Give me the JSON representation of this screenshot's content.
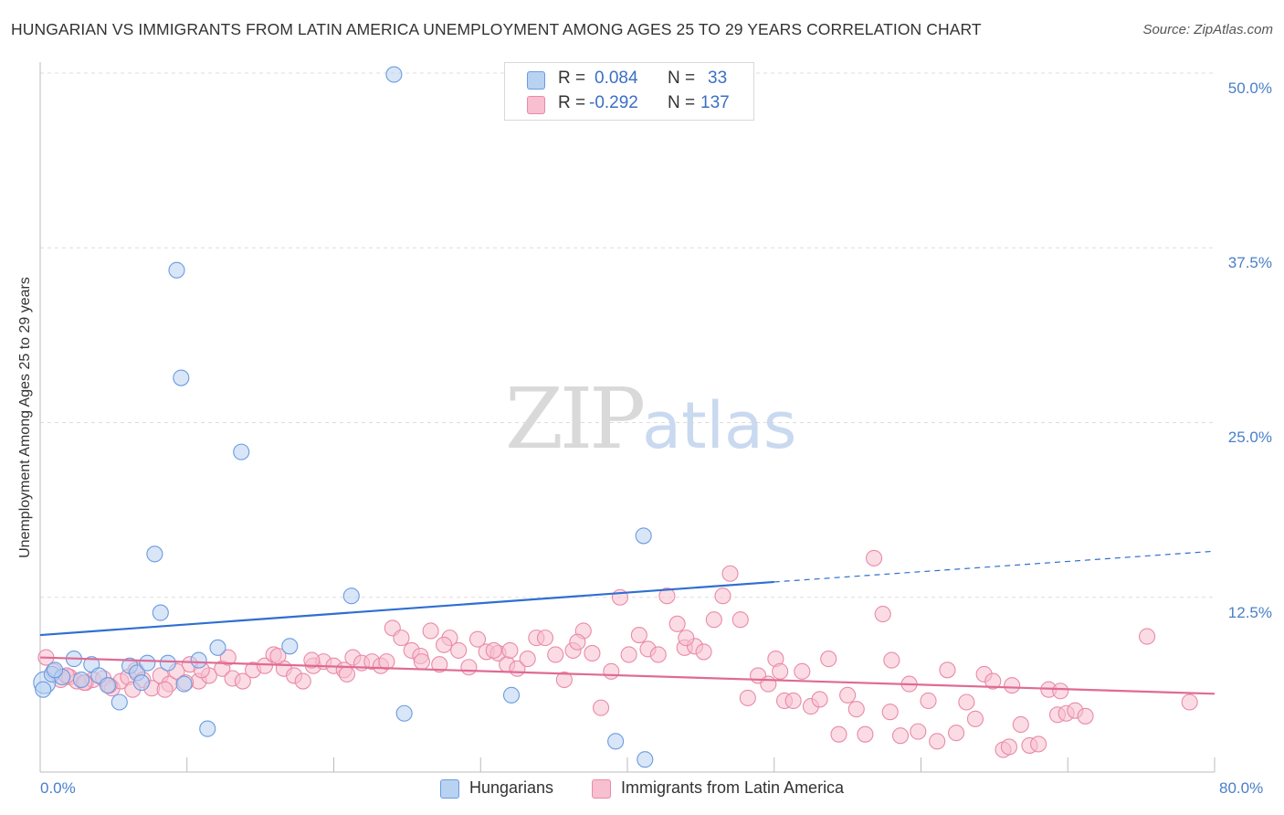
{
  "header": {
    "title": "HUNGARIAN VS IMMIGRANTS FROM LATIN AMERICA UNEMPLOYMENT AMONG AGES 25 TO 29 YEARS CORRELATION CHART",
    "source": "Source: ZipAtlas.com"
  },
  "watermark": {
    "zip": "ZIP",
    "atlas": "atlas"
  },
  "legend": {
    "rows": [
      {
        "r_label": "R =",
        "r_value": "0.084",
        "n_label": "N =",
        "n_value": "33",
        "color": "#b8d2f2"
      },
      {
        "r_label": "R =",
        "r_value": "-0.292",
        "n_label": "N =",
        "n_value": "137",
        "color": "#f7bfd0"
      }
    ]
  },
  "bottom_legend": {
    "series1": "Hungarians",
    "series2": "Immigrants from Latin America"
  },
  "chart_data": {
    "type": "scatter",
    "title": "HUNGARIAN VS IMMIGRANTS FROM LATIN AMERICA UNEMPLOYMENT AMONG AGES 25 TO 29 YEARS CORRELATION CHART",
    "xlabel": "",
    "ylabel": "Unemployment Among Ages 25 to 29 years",
    "xlim": [
      0,
      80
    ],
    "ylim": [
      0,
      50
    ],
    "x_tick_labels": [
      "0.0%",
      "80.0%"
    ],
    "y_tick_labels": [
      "50.0%",
      "37.5%",
      "25.0%",
      "12.5%"
    ],
    "y_ticks": [
      50,
      37.5,
      25,
      12.5
    ],
    "grid": true,
    "legend_position": "top-center",
    "series": [
      {
        "name": "Hungarians",
        "color": "#6a9be0",
        "fill": "#b8d2f2",
        "trend": {
          "x": [
            0,
            50
          ],
          "y": [
            9.8,
            13.6
          ],
          "dashed_to": [
            80,
            15.8
          ],
          "color": "#2f6fd0"
        },
        "points": [
          [
            0.3,
            6.4
          ],
          [
            0.8,
            7.0
          ],
          [
            1.5,
            6.8
          ],
          [
            2.3,
            8.1
          ],
          [
            2.8,
            6.6
          ],
          [
            3.5,
            7.7
          ],
          [
            4.0,
            6.9
          ],
          [
            4.6,
            6.2
          ],
          [
            5.4,
            5.0
          ],
          [
            6.1,
            7.6
          ],
          [
            6.6,
            7.1
          ],
          [
            6.9,
            6.4
          ],
          [
            7.3,
            7.8
          ],
          [
            7.8,
            15.6
          ],
          [
            8.2,
            11.4
          ],
          [
            8.7,
            7.8
          ],
          [
            9.3,
            35.9
          ],
          [
            9.6,
            28.2
          ],
          [
            9.8,
            6.3
          ],
          [
            10.8,
            8.0
          ],
          [
            11.4,
            3.1
          ],
          [
            12.1,
            8.9
          ],
          [
            13.7,
            22.9
          ],
          [
            17.0,
            9.0
          ],
          [
            21.2,
            12.6
          ],
          [
            24.1,
            49.9
          ],
          [
            24.8,
            4.2
          ],
          [
            32.1,
            5.5
          ],
          [
            39.2,
            2.2
          ],
          [
            41.1,
            16.9
          ],
          [
            41.2,
            0.9
          ],
          [
            0.2,
            5.9
          ],
          [
            1.0,
            7.3
          ]
        ]
      },
      {
        "name": "Immigrants from Latin America",
        "color": "#e98aa8",
        "fill": "#f7bfd0",
        "trend": {
          "x": [
            0,
            80
          ],
          "y": [
            8.2,
            5.6
          ],
          "color": "#e06a94"
        },
        "points": [
          [
            0.4,
            8.2
          ],
          [
            0.9,
            7.2
          ],
          [
            1.4,
            6.6
          ],
          [
            2.0,
            6.8
          ],
          [
            2.5,
            6.5
          ],
          [
            3.1,
            6.4
          ],
          [
            3.6,
            6.6
          ],
          [
            4.3,
            6.7
          ],
          [
            4.9,
            6.0
          ],
          [
            5.5,
            6.5
          ],
          [
            6.0,
            6.8
          ],
          [
            6.5,
            7.3
          ],
          [
            7.0,
            6.6
          ],
          [
            7.6,
            6.0
          ],
          [
            8.2,
            6.9
          ],
          [
            8.8,
            6.3
          ],
          [
            9.3,
            7.2
          ],
          [
            10.2,
            7.7
          ],
          [
            10.8,
            6.5
          ],
          [
            11.5,
            6.9
          ],
          [
            12.4,
            7.4
          ],
          [
            13.1,
            6.7
          ],
          [
            13.8,
            6.5
          ],
          [
            14.5,
            7.3
          ],
          [
            15.3,
            7.6
          ],
          [
            15.9,
            8.4
          ],
          [
            16.6,
            7.4
          ],
          [
            17.3,
            6.9
          ],
          [
            17.9,
            6.5
          ],
          [
            18.6,
            7.6
          ],
          [
            19.3,
            7.9
          ],
          [
            20.0,
            7.6
          ],
          [
            20.7,
            7.3
          ],
          [
            21.3,
            8.2
          ],
          [
            21.9,
            7.8
          ],
          [
            22.6,
            7.9
          ],
          [
            23.2,
            7.6
          ],
          [
            24.0,
            10.3
          ],
          [
            24.6,
            9.6
          ],
          [
            25.3,
            8.7
          ],
          [
            25.9,
            8.3
          ],
          [
            26.6,
            10.1
          ],
          [
            27.2,
            7.7
          ],
          [
            27.9,
            9.6
          ],
          [
            28.5,
            8.7
          ],
          [
            29.2,
            7.5
          ],
          [
            29.8,
            9.5
          ],
          [
            30.4,
            8.6
          ],
          [
            31.2,
            8.5
          ],
          [
            31.8,
            7.7
          ],
          [
            32.5,
            7.4
          ],
          [
            33.2,
            8.1
          ],
          [
            33.8,
            9.6
          ],
          [
            34.4,
            9.6
          ],
          [
            35.1,
            8.4
          ],
          [
            35.7,
            6.6
          ],
          [
            36.3,
            8.7
          ],
          [
            37.0,
            10.1
          ],
          [
            37.6,
            8.5
          ],
          [
            38.2,
            4.6
          ],
          [
            38.9,
            7.2
          ],
          [
            39.5,
            12.5
          ],
          [
            40.1,
            8.4
          ],
          [
            40.8,
            9.8
          ],
          [
            41.4,
            8.8
          ],
          [
            42.1,
            8.4
          ],
          [
            42.7,
            12.6
          ],
          [
            43.4,
            10.6
          ],
          [
            43.9,
            8.9
          ],
          [
            44.6,
            9.0
          ],
          [
            45.2,
            8.6
          ],
          [
            45.9,
            10.9
          ],
          [
            46.5,
            12.6
          ],
          [
            47.0,
            14.2
          ],
          [
            47.7,
            10.9
          ],
          [
            48.2,
            5.3
          ],
          [
            48.9,
            6.9
          ],
          [
            49.6,
            6.3
          ],
          [
            50.1,
            8.1
          ],
          [
            50.7,
            5.1
          ],
          [
            51.3,
            5.1
          ],
          [
            51.9,
            7.2
          ],
          [
            52.5,
            4.7
          ],
          [
            53.1,
            5.2
          ],
          [
            53.7,
            8.1
          ],
          [
            54.4,
            2.7
          ],
          [
            55.0,
            5.5
          ],
          [
            55.6,
            4.5
          ],
          [
            56.2,
            2.7
          ],
          [
            56.8,
            15.3
          ],
          [
            57.4,
            11.3
          ],
          [
            57.9,
            4.3
          ],
          [
            58.6,
            2.6
          ],
          [
            59.2,
            6.3
          ],
          [
            59.8,
            2.9
          ],
          [
            60.5,
            5.1
          ],
          [
            61.1,
            2.2
          ],
          [
            61.8,
            7.3
          ],
          [
            62.4,
            2.8
          ],
          [
            63.1,
            5.0
          ],
          [
            63.7,
            3.8
          ],
          [
            64.3,
            7.0
          ],
          [
            64.9,
            6.5
          ],
          [
            65.6,
            1.6
          ],
          [
            66.2,
            6.2
          ],
          [
            66.8,
            3.4
          ],
          [
            67.4,
            1.9
          ],
          [
            68.0,
            2.0
          ],
          [
            68.7,
            5.9
          ],
          [
            69.3,
            4.1
          ],
          [
            69.9,
            4.2
          ],
          [
            70.5,
            4.4
          ],
          [
            71.2,
            4.0
          ],
          [
            78.3,
            5.0
          ],
          [
            75.4,
            9.7
          ],
          [
            32.0,
            8.7
          ],
          [
            26.0,
            7.9
          ],
          [
            20.9,
            7.0
          ],
          [
            18.5,
            8.0
          ],
          [
            12.8,
            8.2
          ],
          [
            11.0,
            7.3
          ],
          [
            9.9,
            6.4
          ],
          [
            8.5,
            5.9
          ],
          [
            6.3,
            5.9
          ],
          [
            4.7,
            6.2
          ],
          [
            3.0,
            6.4
          ],
          [
            1.8,
            6.9
          ],
          [
            27.5,
            9.1
          ],
          [
            36.6,
            9.3
          ],
          [
            44.0,
            9.6
          ],
          [
            50.4,
            7.2
          ],
          [
            58.0,
            8.0
          ],
          [
            66.0,
            1.8
          ],
          [
            69.5,
            5.8
          ],
          [
            16.2,
            8.3
          ],
          [
            23.6,
            7.9
          ],
          [
            30.9,
            8.7
          ]
        ]
      }
    ]
  }
}
